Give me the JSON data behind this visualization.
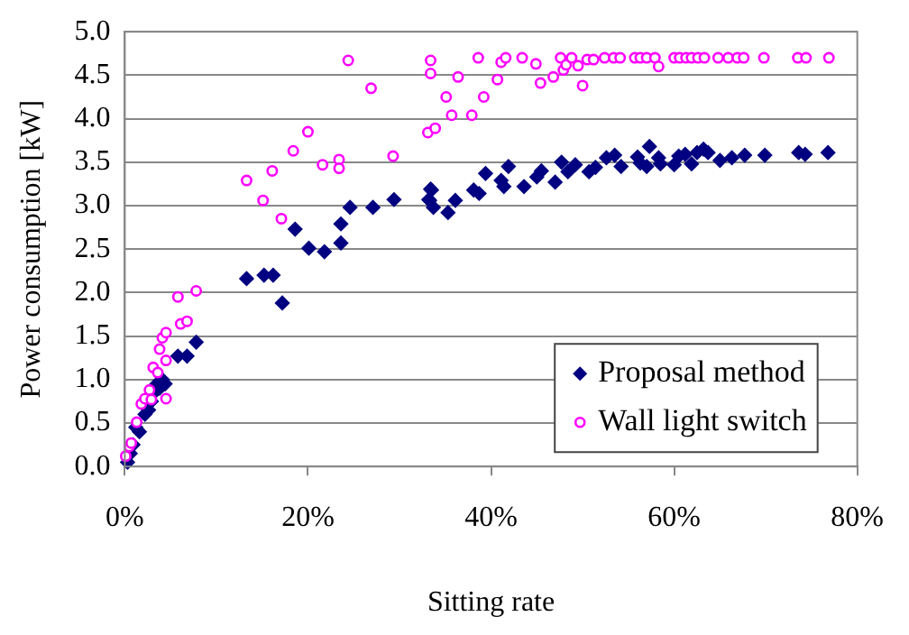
{
  "chart_data": {
    "type": "scatter",
    "xlabel": "Sitting rate",
    "ylabel": "Power consumption [kW]",
    "xlim": [
      0,
      80
    ],
    "xticks": [
      {
        "value": 0,
        "label": "0%"
      },
      {
        "value": 20,
        "label": "20%"
      },
      {
        "value": 40,
        "label": "40%"
      },
      {
        "value": 60,
        "label": "60%"
      },
      {
        "value": 80,
        "label": "80%"
      }
    ],
    "ylim": [
      0,
      5
    ],
    "yticks": [
      {
        "value": 0,
        "label": "0.0"
      },
      {
        "value": 0.5,
        "label": "0.5"
      },
      {
        "value": 1,
        "label": "1.0"
      },
      {
        "value": 1.5,
        "label": "1.5"
      },
      {
        "value": 2,
        "label": "2.0"
      },
      {
        "value": 2.5,
        "label": "2.5"
      },
      {
        "value": 3,
        "label": "3.0"
      },
      {
        "value": 3.5,
        "label": "3.5"
      },
      {
        "value": 4,
        "label": "4.0"
      },
      {
        "value": 4.5,
        "label": "4.5"
      },
      {
        "value": 5,
        "label": "5.0"
      }
    ],
    "grid": "y",
    "legend": "bottom right",
    "series": [
      {
        "name": "Proposal method",
        "color": "#000080",
        "marker": "diamond",
        "x": [
          0.3,
          0.6,
          0.9,
          1.2,
          1.6,
          2.2,
          2.6,
          2.9,
          3.2,
          3.5,
          3.8,
          4.1,
          4.4,
          5.8,
          6.8,
          7.8,
          13.3,
          15.2,
          16.2,
          17.2,
          18.6,
          20.1,
          21.8,
          23.6,
          23.6,
          24.6,
          27.1,
          29.4,
          33.2,
          33.5,
          33.7,
          33.4,
          33.3,
          35.3,
          36.1,
          38.1,
          38.7,
          39.4,
          41.1,
          41.4,
          41.9,
          43.6,
          45.0,
          45.5,
          47.0,
          47.7,
          48.4,
          49.2,
          50.7,
          51.4,
          52.6,
          53.5,
          54.2,
          56.0,
          56.3,
          57.0,
          57.3,
          58.3,
          58.5,
          60.0,
          60.5,
          61.2,
          61.9,
          62.5,
          63.2,
          63.7,
          65.0,
          66.3,
          67.7,
          69.9,
          73.6,
          74.3,
          76.8
        ],
        "values": [
          0.05,
          0.15,
          0.25,
          0.45,
          0.4,
          0.6,
          0.65,
          0.75,
          0.85,
          0.95,
          0.9,
          1.0,
          0.95,
          1.27,
          1.27,
          1.43,
          2.16,
          2.2,
          2.2,
          1.88,
          2.73,
          2.51,
          2.47,
          2.57,
          2.79,
          2.98,
          2.98,
          3.07,
          3.07,
          3.18,
          2.98,
          3.19,
          3.06,
          2.92,
          3.06,
          3.18,
          3.14,
          3.37,
          3.29,
          3.22,
          3.45,
          3.22,
          3.33,
          3.4,
          3.27,
          3.5,
          3.39,
          3.47,
          3.39,
          3.44,
          3.55,
          3.58,
          3.45,
          3.56,
          3.49,
          3.45,
          3.68,
          3.55,
          3.48,
          3.47,
          3.57,
          3.59,
          3.48,
          3.61,
          3.65,
          3.61,
          3.52,
          3.55,
          3.58,
          3.58,
          3.61,
          3.59,
          3.61
        ]
      },
      {
        "name": "Wall light switch",
        "color": "#ff00ff",
        "marker": "circle",
        "x": [
          0.1,
          0.5,
          0.7,
          1.3,
          1.8,
          2.2,
          2.7,
          2.9,
          4.5,
          3.1,
          3.6,
          3.8,
          4.1,
          4.5,
          4.5,
          5.8,
          7.8,
          6.1,
          6.8,
          13.3,
          15.1,
          16.1,
          17.1,
          18.4,
          20.0,
          21.6,
          23.4,
          23.4,
          24.4,
          26.9,
          29.3,
          33.1,
          33.9,
          33.4,
          33.4,
          35.1,
          35.7,
          36.4,
          37.9,
          38.6,
          39.2,
          40.7,
          41.1,
          41.6,
          43.4,
          44.9,
          45.4,
          46.8,
          47.6,
          47.9,
          48.2,
          48.8,
          49.5,
          50.0,
          50.5,
          51.2,
          52.4,
          53.4,
          54.1,
          55.7,
          56.3,
          57.0,
          57.9,
          58.3,
          60.0,
          60.6,
          61.3,
          61.9,
          62.6,
          63.3,
          64.8,
          65.9,
          66.9,
          67.6,
          69.8,
          73.5,
          74.4,
          76.9
        ],
        "values": [
          0.12,
          0.23,
          0.27,
          0.51,
          0.72,
          0.78,
          0.88,
          0.77,
          0.78,
          1.14,
          1.08,
          1.35,
          1.48,
          1.54,
          1.22,
          1.95,
          2.02,
          1.64,
          1.67,
          3.29,
          3.06,
          3.4,
          2.85,
          3.63,
          3.85,
          3.47,
          3.53,
          3.43,
          4.67,
          4.35,
          3.57,
          3.84,
          3.89,
          4.67,
          4.52,
          4.25,
          4.04,
          4.48,
          4.04,
          4.7,
          4.25,
          4.45,
          4.65,
          4.7,
          4.7,
          4.63,
          4.41,
          4.48,
          4.7,
          4.56,
          4.62,
          4.7,
          4.61,
          4.38,
          4.68,
          4.68,
          4.7,
          4.7,
          4.7,
          4.7,
          4.7,
          4.7,
          4.7,
          4.6,
          4.7,
          4.7,
          4.7,
          4.7,
          4.7,
          4.7,
          4.7,
          4.7,
          4.7,
          4.7,
          4.7,
          4.7,
          4.7,
          4.7
        ]
      }
    ]
  }
}
